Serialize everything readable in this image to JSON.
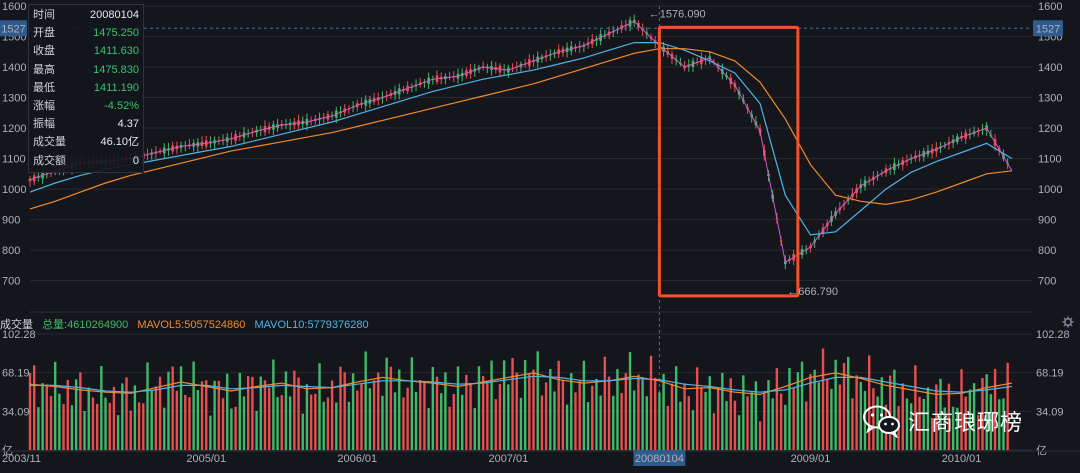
{
  "info_panel": {
    "rows": [
      {
        "key": "时间",
        "value": "20080104",
        "tone": "plain"
      },
      {
        "key": "开盘",
        "value": "1475.250",
        "tone": "pos"
      },
      {
        "key": "收盘",
        "value": "1411.630",
        "tone": "pos"
      },
      {
        "key": "最高",
        "value": "1475.830",
        "tone": "pos"
      },
      {
        "key": "最低",
        "value": "1411.190",
        "tone": "pos"
      },
      {
        "key": "涨幅",
        "value": "-4.52%",
        "tone": "pos"
      },
      {
        "key": "振幅",
        "value": "4.37",
        "tone": "plain"
      },
      {
        "key": "成交量",
        "value": "46.10亿",
        "tone": "plain"
      },
      {
        "key": "成交额",
        "value": "0",
        "tone": "plain"
      }
    ]
  },
  "volume_legend": {
    "title": "成交量",
    "total": "总量:4610264900",
    "mavol5": "MAVOL5:5057524860",
    "mavol10": "MAVOL10:5779376280"
  },
  "watermark": {
    "text": "汇商琅琊榜",
    "icon": "wechat-icon"
  },
  "colors": {
    "background": "#14161b",
    "grid": "#262a31",
    "up": "#e84e4e",
    "down": "#3fb96a",
    "ma5": "#e8e8e8",
    "ma10": "#f2c94c",
    "ma20": "#d257c9",
    "ma60": "#4fb3e8",
    "ma120": "#f08a2c",
    "highlight_box": "#f0522e",
    "crosshair_label": "#2f5a8e",
    "total_label": "#3fb96a",
    "mavol5_label": "#f08a2c",
    "mavol10_label": "#4fb3e8"
  },
  "chart_data": [
    {
      "type": "candlestick",
      "title": "",
      "yticks": [
        "1600",
        "1500",
        "1400",
        "1300",
        "1200",
        "1100",
        "1000",
        "900",
        "800",
        "700"
      ],
      "ylim": [
        630,
        1600
      ],
      "crosshair": {
        "x_label": "20080104",
        "y_label": "1527",
        "y_value": 1527
      },
      "annotations": [
        {
          "text": "←1576.090",
          "x": "2007-12",
          "y": 1576.09
        },
        {
          "text": "←666.790",
          "x": "2008-11",
          "y": 666.79
        }
      ],
      "highlight_range": {
        "x_start": "2008-01",
        "x_end": "2008-12",
        "y_low": 650,
        "y_high": 1530
      },
      "x": [
        "2003-11",
        "2004-01",
        "2004-03",
        "2004-05",
        "2004-07",
        "2004-09",
        "2004-11",
        "2005-01",
        "2005-03",
        "2005-05",
        "2005-07",
        "2005-09",
        "2005-11",
        "2006-01",
        "2006-03",
        "2006-05",
        "2006-07",
        "2006-09",
        "2006-11",
        "2007-01",
        "2007-03",
        "2007-05",
        "2007-07",
        "2007-09",
        "2007-11",
        "2008-01",
        "2008-03",
        "2008-05",
        "2008-07",
        "2008-09",
        "2008-11",
        "2009-01",
        "2009-03",
        "2009-05",
        "2009-07",
        "2009-09",
        "2009-11",
        "2010-01",
        "2010-03",
        "2010-05"
      ],
      "close": [
        1030,
        1060,
        1085,
        1090,
        1100,
        1120,
        1140,
        1150,
        1165,
        1190,
        1210,
        1220,
        1240,
        1275,
        1300,
        1330,
        1360,
        1370,
        1400,
        1390,
        1420,
        1450,
        1470,
        1510,
        1550,
        1470,
        1400,
        1430,
        1340,
        1190,
        760,
        810,
        920,
        1010,
        1060,
        1100,
        1130,
        1170,
        1200,
        1060
      ],
      "series": [
        {
          "name": "",
          "type": "ma",
          "color_key": "ma60",
          "values": [
            990,
            1020,
            1045,
            1065,
            1080,
            1095,
            1110,
            1125,
            1140,
            1160,
            1180,
            1200,
            1220,
            1245,
            1270,
            1295,
            1320,
            1340,
            1360,
            1375,
            1390,
            1410,
            1430,
            1455,
            1480,
            1480,
            1455,
            1420,
            1380,
            1280,
            980,
            850,
            860,
            930,
            1000,
            1055,
            1090,
            1120,
            1150,
            1100
          ]
        },
        {
          "name": "",
          "type": "ma",
          "color_key": "ma120",
          "values": [
            935,
            960,
            990,
            1020,
            1045,
            1065,
            1085,
            1105,
            1125,
            1140,
            1155,
            1170,
            1185,
            1205,
            1225,
            1245,
            1265,
            1285,
            1305,
            1325,
            1345,
            1370,
            1395,
            1420,
            1445,
            1460,
            1460,
            1450,
            1420,
            1350,
            1230,
            1080,
            980,
            960,
            950,
            965,
            990,
            1020,
            1050,
            1060
          ]
        }
      ],
      "xticks": [
        "2003/11",
        "2005/01",
        "2006/01",
        "2007/01",
        "20080104",
        "2009/01",
        "2010/01"
      ]
    },
    {
      "type": "bar",
      "title": "",
      "yticks": [
        "102.28",
        "68.19",
        "34.09",
        "亿"
      ],
      "ylim": [
        0,
        102.28
      ],
      "x": [
        "2003-11",
        "2004-01",
        "2004-03",
        "2004-05",
        "2004-07",
        "2004-09",
        "2004-11",
        "2005-01",
        "2005-03",
        "2005-05",
        "2005-07",
        "2005-09",
        "2005-11",
        "2006-01",
        "2006-03",
        "2006-05",
        "2006-07",
        "2006-09",
        "2006-11",
        "2007-01",
        "2007-03",
        "2007-05",
        "2007-07",
        "2007-09",
        "2007-11",
        "2008-01",
        "2008-03",
        "2008-05",
        "2008-07",
        "2008-09",
        "2008-11",
        "2009-01",
        "2009-03",
        "2009-05",
        "2009-07",
        "2009-09",
        "2009-11",
        "2010-01",
        "2010-03",
        "2010-05"
      ],
      "values": [
        60,
        55,
        52,
        50,
        48,
        58,
        62,
        55,
        50,
        58,
        60,
        52,
        55,
        62,
        66,
        60,
        58,
        55,
        62,
        66,
        70,
        60,
        58,
        62,
        66,
        60,
        52,
        55,
        50,
        48,
        58,
        66,
        70,
        62,
        56,
        52,
        48,
        50,
        56,
        60
      ],
      "series": [
        {
          "name": "MAVOL5",
          "values": [
            58,
            56,
            53,
            51,
            50,
            55,
            60,
            56,
            52,
            56,
            59,
            54,
            55,
            60,
            64,
            61,
            59,
            56,
            60,
            64,
            68,
            62,
            59,
            61,
            65,
            61,
            54,
            55,
            51,
            49,
            56,
            64,
            68,
            63,
            57,
            53,
            49,
            50,
            55,
            59
          ]
        },
        {
          "name": "MAVOL10",
          "values": [
            57,
            57,
            55,
            52,
            51,
            53,
            57,
            57,
            54,
            55,
            57,
            56,
            55,
            58,
            61,
            61,
            60,
            58,
            59,
            62,
            65,
            64,
            61,
            61,
            63,
            62,
            58,
            56,
            53,
            51,
            53,
            59,
            64,
            64,
            60,
            56,
            52,
            51,
            53,
            56
          ]
        }
      ]
    }
  ]
}
